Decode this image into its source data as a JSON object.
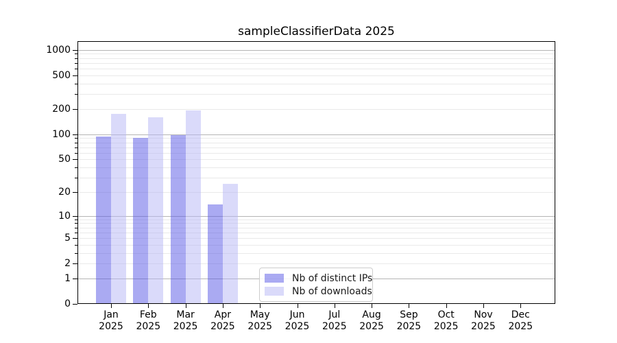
{
  "chart_data": {
    "type": "bar",
    "title": "sampleClassifierData 2025",
    "categories": [
      "Jan",
      "Feb",
      "Mar",
      "Apr",
      "May",
      "Jun",
      "Jul",
      "Aug",
      "Sep",
      "Oct",
      "Nov",
      "Dec"
    ],
    "year_label": "2025",
    "series": [
      {
        "name": "Nb of distinct IPs",
        "color": "rgba(85,85,229,0.5)",
        "solid_equivalent": "#aaaaf2",
        "values": [
          94,
          90,
          97,
          14,
          0,
          0,
          0,
          0,
          0,
          0,
          0,
          0
        ]
      },
      {
        "name": "Nb of downloads",
        "color": "rgba(181,181,245,0.5)",
        "solid_equivalent": "#dadaf8",
        "values": [
          174,
          160,
          192,
          25,
          0,
          0,
          0,
          0,
          0,
          0,
          0,
          0
        ]
      }
    ],
    "xlabel": "",
    "ylabel": "",
    "y_ticks": [
      0,
      1,
      2,
      5,
      10,
      20,
      50,
      100,
      200,
      500,
      1000
    ],
    "y_minor_ticks": [
      2,
      3,
      4,
      5,
      6,
      7,
      8,
      9,
      20,
      30,
      40,
      50,
      60,
      70,
      80,
      90,
      200,
      300,
      400,
      500,
      600,
      700,
      800,
      900
    ],
    "scale": "log1p",
    "ylim": [
      0,
      1280
    ],
    "grid": "both",
    "grid_major_at": [
      1,
      10,
      100,
      1000
    ],
    "grid_major_color": "#b4b4b4",
    "grid_minor_color": "#e9e9e9",
    "legend_position": "bottom-center"
  }
}
